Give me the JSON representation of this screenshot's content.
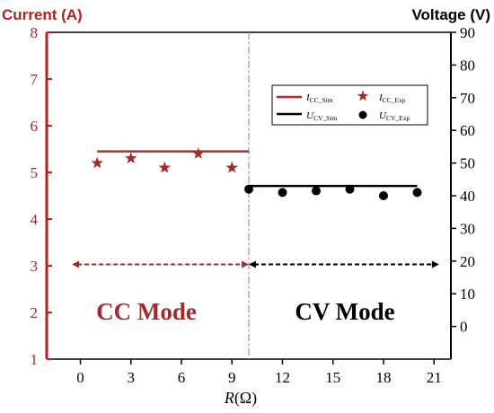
{
  "chart_data": {
    "type": "line",
    "title": "",
    "left_axis": {
      "label": "Current (A)",
      "ylim": [
        1,
        8
      ],
      "ticks": [
        "1",
        "2",
        "3",
        "4",
        "5",
        "6",
        "7",
        "8"
      ],
      "color": "#b22222"
    },
    "right_axis": {
      "label": "Voltage (V)",
      "ylim": [
        -10,
        90
      ],
      "ticks": [
        "0",
        "10",
        "20",
        "30",
        "40",
        "50",
        "60",
        "70",
        "80",
        "90"
      ],
      "color": "#000000"
    },
    "x_axis": {
      "label_italic": "R",
      "label_rest": "(Ω)",
      "xlim": [
        -2,
        22
      ],
      "ticks": [
        "0",
        "3",
        "6",
        "9",
        "12",
        "15",
        "18",
        "21"
      ]
    },
    "series": [
      {
        "name_main": "I",
        "name_sub": "CC_Sim",
        "kind": "line",
        "axis": "left",
        "color": "#c0272d",
        "x": [
          1,
          10
        ],
        "y": [
          5.45,
          5.45
        ]
      },
      {
        "name_main": "I",
        "name_sub": "CC_Exp",
        "kind": "star",
        "axis": "left",
        "color": "#a52a2a",
        "x": [
          1,
          3,
          5,
          7,
          9
        ],
        "y": [
          5.2,
          5.3,
          5.1,
          5.4,
          5.1
        ]
      },
      {
        "name_main": "U",
        "name_sub": "CV_Sim",
        "kind": "line",
        "axis": "right",
        "color": "#000000",
        "x": [
          10,
          20
        ],
        "y": [
          43,
          43
        ]
      },
      {
        "name_main": "U",
        "name_sub": "CV_Exp",
        "kind": "dot",
        "axis": "right",
        "color": "#000000",
        "x": [
          10,
          12,
          14,
          16,
          18,
          20
        ],
        "y": [
          42,
          41,
          41.5,
          42,
          40,
          41
        ]
      }
    ],
    "divider_x": 10,
    "regions": [
      {
        "label": "CC Mode",
        "color": "#a52a2a",
        "x_from": -0.5,
        "x_to": 10,
        "arrow_y_right": 19
      },
      {
        "label": "CV Mode",
        "color": "#000000",
        "x_from": 10,
        "x_to": 21.3,
        "arrow_y_right": 19
      }
    ],
    "legend_position": "upper-right",
    "grid": false
  }
}
